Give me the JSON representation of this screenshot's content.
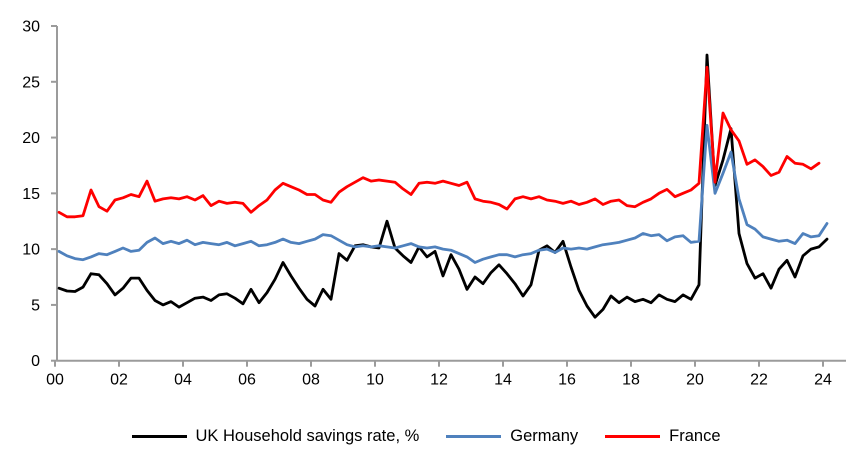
{
  "chart_data": {
    "type": "line",
    "frequency": "quarterly",
    "x_start": "2000-Q1",
    "x_end": "2024-Q1",
    "x_tick_labels": [
      "00",
      "02",
      "04",
      "06",
      "08",
      "10",
      "12",
      "14",
      "16",
      "18",
      "20",
      "22",
      "24"
    ],
    "y_ticks": [
      0,
      5,
      10,
      15,
      20,
      25,
      30
    ],
    "ylim": [
      0,
      30
    ],
    "grid": false,
    "legend_position": "bottom",
    "axis_color": "#9B9B9B",
    "text_color": "#000000",
    "background_color": "#FFFFFF",
    "series": [
      {
        "name": "UK Household savings rate, %",
        "color": "#000000",
        "values": [
          6.5,
          6.25,
          6.2,
          6.6,
          7.8,
          7.7,
          6.9,
          5.9,
          6.5,
          7.4,
          7.4,
          6.3,
          5.4,
          5.0,
          5.3,
          4.8,
          5.2,
          5.6,
          5.7,
          5.4,
          5.9,
          6.0,
          5.6,
          5.1,
          6.4,
          5.2,
          6.1,
          7.3,
          8.8,
          7.6,
          6.5,
          5.5,
          4.9,
          6.4,
          5.5,
          9.6,
          9.0,
          10.3,
          10.4,
          10.2,
          10.1,
          12.5,
          10.1,
          9.4,
          8.8,
          10.2,
          9.3,
          9.8,
          7.6,
          9.5,
          8.2,
          6.4,
          7.5,
          6.9,
          7.9,
          8.6,
          7.8,
          6.9,
          5.8,
          6.8,
          9.9,
          10.3,
          9.7,
          10.7,
          8.4,
          6.3,
          4.9,
          3.9,
          4.6,
          5.8,
          5.2,
          5.7,
          5.3,
          5.5,
          5.2,
          5.9,
          5.5,
          5.3,
          5.9,
          5.5,
          6.8,
          27.4,
          15.7,
          18.0,
          20.8,
          11.4,
          8.7,
          7.4,
          7.8,
          6.5,
          8.2,
          9.0,
          7.5,
          9.4,
          10.0,
          10.2,
          10.9
        ]
      },
      {
        "name": "Germany",
        "color": "#4F81BD",
        "values": [
          9.8,
          9.4,
          9.15,
          9.05,
          9.3,
          9.6,
          9.5,
          9.8,
          10.1,
          9.8,
          9.9,
          10.6,
          11.0,
          10.5,
          10.7,
          10.5,
          10.8,
          10.4,
          10.6,
          10.5,
          10.4,
          10.6,
          10.3,
          10.5,
          10.7,
          10.3,
          10.4,
          10.6,
          10.9,
          10.6,
          10.5,
          10.7,
          10.9,
          11.3,
          11.2,
          10.8,
          10.4,
          10.2,
          10.3,
          10.2,
          10.3,
          10.2,
          10.1,
          10.3,
          10.5,
          10.2,
          10.1,
          10.2,
          10.0,
          9.9,
          9.6,
          9.3,
          8.8,
          9.1,
          9.3,
          9.5,
          9.5,
          9.3,
          9.5,
          9.6,
          9.9,
          10.0,
          9.7,
          10.1,
          10.0,
          10.1,
          10.0,
          10.2,
          10.4,
          10.5,
          10.6,
          10.8,
          11.0,
          11.4,
          11.2,
          11.3,
          10.75,
          11.1,
          11.2,
          10.6,
          10.7,
          21.1,
          15.0,
          16.8,
          18.7,
          14.5,
          12.2,
          11.8,
          11.1,
          10.9,
          10.7,
          10.8,
          10.5,
          11.4,
          11.1,
          11.2,
          12.3
        ]
      },
      {
        "name": "France",
        "color": "#FF0000",
        "values": [
          13.3,
          12.9,
          12.9,
          13.0,
          15.3,
          13.8,
          13.4,
          14.4,
          14.6,
          14.9,
          14.7,
          16.1,
          14.3,
          14.5,
          14.6,
          14.5,
          14.7,
          14.4,
          14.8,
          13.9,
          14.3,
          14.1,
          14.2,
          14.1,
          13.3,
          13.9,
          14.4,
          15.3,
          15.9,
          15.6,
          15.3,
          14.9,
          14.9,
          14.4,
          14.2,
          15.1,
          15.6,
          16.0,
          16.4,
          16.1,
          16.2,
          16.1,
          16.0,
          15.4,
          14.9,
          15.9,
          16.0,
          15.9,
          16.1,
          15.9,
          15.7,
          16.0,
          14.5,
          14.3,
          14.2,
          14.0,
          13.6,
          14.5,
          14.7,
          14.5,
          14.7,
          14.4,
          14.3,
          14.1,
          14.3,
          14.0,
          14.2,
          14.5,
          14.0,
          14.3,
          14.4,
          13.9,
          13.8,
          14.2,
          14.5,
          15.0,
          15.35,
          14.7,
          15.0,
          15.3,
          15.9,
          26.3,
          16.0,
          22.2,
          20.7,
          19.7,
          17.6,
          18.0,
          17.4,
          16.6,
          16.9,
          18.3,
          17.7,
          17.6,
          17.2,
          17.7,
          null
        ]
      }
    ]
  }
}
